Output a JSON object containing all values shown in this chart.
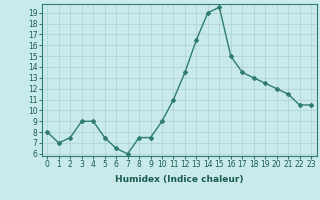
{
  "x": [
    0,
    1,
    2,
    3,
    4,
    5,
    6,
    7,
    8,
    9,
    10,
    11,
    12,
    13,
    14,
    15,
    16,
    17,
    18,
    19,
    20,
    21,
    22,
    23
  ],
  "y": [
    8,
    7,
    7.5,
    9,
    9,
    7.5,
    6.5,
    6,
    7.5,
    7.5,
    9,
    11,
    13.5,
    16.5,
    19,
    19.5,
    15,
    13.5,
    13,
    12.5,
    12,
    11.5,
    10.5,
    10.5
  ],
  "line_color": "#2e7d6e",
  "marker": "D",
  "marker_size": 2,
  "bg_color": "#c8eaea",
  "grid_color": "#aecfcf",
  "xlabel": "Humidex (Indice chaleur)",
  "ylabel_ticks": [
    6,
    7,
    8,
    9,
    10,
    11,
    12,
    13,
    14,
    15,
    16,
    17,
    18,
    19
  ],
  "xlim": [
    -0.5,
    23.5
  ],
  "ylim": [
    5.8,
    19.8
  ],
  "xlabel_fontsize": 6.5,
  "tick_fontsize": 5.5,
  "linewidth": 1.0
}
